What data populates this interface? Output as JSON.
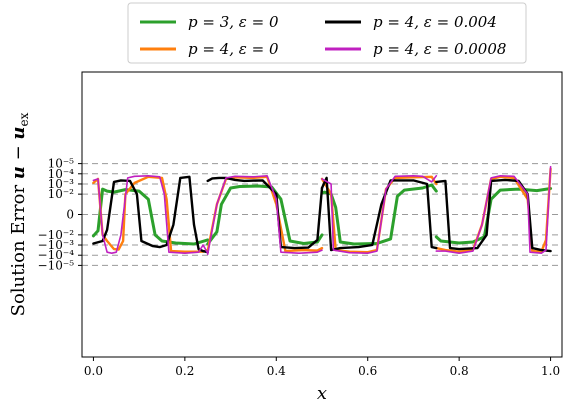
{
  "chart_data": {
    "type": "line",
    "xlabel": "x",
    "ylabel": "Solution Error u − u_ex",
    "ylabel_parts": {
      "prefix": "Solution Error ",
      "u": "u",
      "minus": " − ",
      "uex": "u",
      "sub": "ex"
    },
    "xlim": [
      -0.025,
      1.025
    ],
    "ylim": [
      -14.0,
      14.0
    ],
    "yscale": "symlog",
    "symlog_linthresh": 1e-05,
    "xticks": [
      0.0,
      0.2,
      0.4,
      0.6,
      0.8,
      1.0
    ],
    "xtick_labels": [
      "0.0",
      "0.2",
      "0.4",
      "0.6",
      "0.8",
      "1.0"
    ],
    "yticks": [
      -2,
      -3,
      -4,
      -5,
      0,
      5,
      4,
      3,
      2
    ],
    "ytick_labels": {
      "neg_2": "−10⁻²",
      "neg_3": "−10⁻³",
      "neg_4": "−10⁻⁴",
      "neg_5": "−10⁻⁵",
      "zero": "0",
      "pos_5": "10⁻⁵",
      "pos_4": "10⁻⁴",
      "pos_3": "10⁻³",
      "pos_2": "10⁻²"
    },
    "grid": "horizontal-dashed",
    "legend_position": "top-center",
    "series": [
      {
        "name": "p = 3, ε = 0",
        "color": "#2ca02c",
        "segments": [
          [
            [
              0.0,
              -2.1
            ],
            [
              0.01,
              -1.6
            ],
            [
              0.02,
              2.5
            ],
            [
              0.03,
              2.3
            ],
            [
              0.045,
              2.2
            ],
            [
              0.07,
              2.45
            ],
            [
              0.1,
              2.3
            ],
            [
              0.12,
              1.5
            ],
            [
              0.135,
              -2.0
            ],
            [
              0.15,
              -2.6
            ],
            [
              0.18,
              -2.8
            ],
            [
              0.22,
              -2.9
            ],
            [
              0.25,
              -2.5
            ]
          ],
          [
            [
              0.25,
              -2.9
            ],
            [
              0.27,
              -1.7
            ],
            [
              0.28,
              1.0
            ],
            [
              0.3,
              2.6
            ],
            [
              0.32,
              2.75
            ],
            [
              0.36,
              2.8
            ],
            [
              0.39,
              2.7
            ],
            [
              0.41,
              1.5
            ],
            [
              0.43,
              -2.6
            ],
            [
              0.46,
              -2.85
            ],
            [
              0.49,
              -2.7
            ],
            [
              0.5,
              -2.0
            ]
          ],
          [
            [
              0.5,
              2.1
            ],
            [
              0.505,
              2.2
            ],
            [
              0.52,
              2.0
            ],
            [
              0.53,
              0.7
            ],
            [
              0.54,
              -2.7
            ],
            [
              0.57,
              -2.9
            ],
            [
              0.62,
              -2.85
            ],
            [
              0.65,
              -2.4
            ],
            [
              0.665,
              1.8
            ],
            [
              0.68,
              2.4
            ],
            [
              0.72,
              2.6
            ],
            [
              0.74,
              2.9
            ],
            [
              0.75,
              2.3
            ]
          ],
          [
            [
              0.75,
              -2.2
            ],
            [
              0.76,
              -2.6
            ],
            [
              0.8,
              -2.8
            ],
            [
              0.83,
              -2.7
            ],
            [
              0.855,
              -2.2
            ],
            [
              0.87,
              1.5
            ],
            [
              0.89,
              2.4
            ],
            [
              0.93,
              2.5
            ],
            [
              0.97,
              2.35
            ],
            [
              1.0,
              2.55
            ]
          ]
        ]
      },
      {
        "name": "p = 4, ε = 0",
        "color": "#ff7f0e",
        "segments": [
          [
            [
              0.0,
              3.1
            ],
            [
              0.01,
              3.5
            ],
            [
              0.02,
              -2.0
            ],
            [
              0.03,
              -2.6
            ],
            [
              0.045,
              -3.4
            ],
            [
              0.055,
              -3.45
            ],
            [
              0.065,
              -2.6
            ],
            [
              0.07,
              2.0
            ],
            [
              0.09,
              3.1
            ],
            [
              0.12,
              3.7
            ],
            [
              0.15,
              3.6
            ],
            [
              0.16,
              1.5
            ],
            [
              0.17,
              -3.6
            ],
            [
              0.2,
              -3.65
            ],
            [
              0.24,
              -3.65
            ],
            [
              0.25,
              -3.5
            ]
          ],
          [
            [
              0.25,
              -3.6
            ],
            [
              0.27,
              1.0
            ],
            [
              0.29,
              3.5
            ],
            [
              0.31,
              3.65
            ],
            [
              0.35,
              3.6
            ],
            [
              0.38,
              3.7
            ],
            [
              0.4,
              1.0
            ],
            [
              0.42,
              -3.6
            ],
            [
              0.46,
              -3.5
            ],
            [
              0.49,
              -3.55
            ],
            [
              0.5,
              -3.3
            ]
          ],
          [
            [
              0.5,
              3.5
            ],
            [
              0.52,
              2.0
            ],
            [
              0.53,
              -3.5
            ],
            [
              0.56,
              -3.65
            ],
            [
              0.6,
              -3.7
            ],
            [
              0.62,
              -3.5
            ],
            [
              0.64,
              2.5
            ],
            [
              0.66,
              3.6
            ],
            [
              0.7,
              3.65
            ],
            [
              0.74,
              3.7
            ],
            [
              0.75,
              3.0
            ]
          ],
          [
            [
              0.75,
              -3.3
            ],
            [
              0.77,
              -3.5
            ],
            [
              0.8,
              -3.65
            ],
            [
              0.83,
              -3.5
            ],
            [
              0.85,
              -1.0
            ],
            [
              0.87,
              3.5
            ],
            [
              0.89,
              3.7
            ],
            [
              0.92,
              3.6
            ],
            [
              0.95,
              1.5
            ],
            [
              0.96,
              -3.6
            ],
            [
              0.98,
              -3.65
            ],
            [
              0.99,
              -2.5
            ],
            [
              1.0,
              4.5
            ]
          ]
        ]
      },
      {
        "name": "p = 4, ε = 0.004",
        "color": "#000000",
        "segments": [
          [
            [
              0.0,
              -2.85
            ],
            [
              0.02,
              -2.6
            ],
            [
              0.03,
              -1.5
            ],
            [
              0.045,
              3.2
            ],
            [
              0.06,
              3.35
            ],
            [
              0.08,
              3.3
            ],
            [
              0.095,
              2.0
            ],
            [
              0.105,
              -2.6
            ],
            [
              0.13,
              -3.1
            ],
            [
              0.145,
              -3.2
            ],
            [
              0.16,
              -3.0
            ],
            [
              0.175,
              -1.0
            ],
            [
              0.19,
              3.6
            ],
            [
              0.21,
              3.7
            ],
            [
              0.22,
              -1.0
            ],
            [
              0.23,
              -3.4
            ],
            [
              0.24,
              -3.6
            ],
            [
              0.25,
              -3.7
            ]
          ],
          [
            [
              0.25,
              3.3
            ],
            [
              0.26,
              3.55
            ],
            [
              0.275,
              3.6
            ],
            [
              0.29,
              3.6
            ],
            [
              0.31,
              3.4
            ],
            [
              0.33,
              3.3
            ],
            [
              0.37,
              3.35
            ],
            [
              0.4,
              2.0
            ],
            [
              0.41,
              -3.2
            ],
            [
              0.44,
              -3.3
            ],
            [
              0.47,
              -3.25
            ],
            [
              0.49,
              -2.5
            ],
            [
              0.5,
              2.6
            ]
          ],
          [
            [
              0.5,
              2.6
            ],
            [
              0.51,
              3.6
            ],
            [
              0.52,
              -3.5
            ],
            [
              0.54,
              -3.3
            ],
            [
              0.58,
              -3.2
            ],
            [
              0.61,
              -3.0
            ],
            [
              0.63,
              1.0
            ],
            [
              0.65,
              3.35
            ],
            [
              0.7,
              3.35
            ],
            [
              0.73,
              3.0
            ],
            [
              0.74,
              -3.2
            ],
            [
              0.75,
              -3.3
            ]
          ],
          [
            [
              0.75,
              3.2
            ],
            [
              0.77,
              3.3
            ],
            [
              0.78,
              -3.3
            ],
            [
              0.8,
              -3.4
            ],
            [
              0.84,
              -3.3
            ],
            [
              0.86,
              -2.0
            ],
            [
              0.87,
              3.3
            ],
            [
              0.9,
              3.4
            ],
            [
              0.93,
              3.3
            ],
            [
              0.95,
              2.0
            ],
            [
              0.96,
              -3.3
            ],
            [
              0.98,
              -3.5
            ],
            [
              1.0,
              -3.6
            ]
          ]
        ]
      },
      {
        "name": "p = 4, ε = 0.0008",
        "color": "#c020c0",
        "segments": [
          [
            [
              0.0,
              3.35
            ],
            [
              0.01,
              3.5
            ],
            [
              0.02,
              -2.0
            ],
            [
              0.03,
              -3.7
            ],
            [
              0.04,
              -3.8
            ],
            [
              0.05,
              -3.7
            ],
            [
              0.06,
              -2.0
            ],
            [
              0.075,
              3.6
            ],
            [
              0.09,
              3.75
            ],
            [
              0.12,
              3.8
            ],
            [
              0.145,
              3.7
            ],
            [
              0.155,
              2.0
            ],
            [
              0.165,
              -3.7
            ],
            [
              0.2,
              -3.8
            ],
            [
              0.23,
              -3.7
            ],
            [
              0.24,
              -3.0
            ],
            [
              0.25,
              -3.8
            ]
          ],
          [
            [
              0.25,
              -3.9
            ],
            [
              0.27,
              1.0
            ],
            [
              0.29,
              3.6
            ],
            [
              0.31,
              3.75
            ],
            [
              0.35,
              3.7
            ],
            [
              0.38,
              3.8
            ],
            [
              0.4,
              1.5
            ],
            [
              0.41,
              -3.7
            ],
            [
              0.45,
              -3.8
            ],
            [
              0.49,
              -3.7
            ],
            [
              0.5,
              -3.5
            ]
          ],
          [
            [
              0.5,
              3.5
            ],
            [
              0.52,
              3.0
            ],
            [
              0.525,
              -3.5
            ],
            [
              0.56,
              -3.75
            ],
            [
              0.6,
              -3.8
            ],
            [
              0.62,
              -3.6
            ],
            [
              0.64,
              2.5
            ],
            [
              0.66,
              3.75
            ],
            [
              0.7,
              3.8
            ],
            [
              0.72,
              3.75
            ],
            [
              0.74,
              3.2
            ],
            [
              0.75,
              3.8
            ]
          ],
          [
            [
              0.75,
              -3.6
            ],
            [
              0.77,
              -3.6
            ],
            [
              0.8,
              -3.8
            ],
            [
              0.83,
              -3.6
            ],
            [
              0.85,
              -1.0
            ],
            [
              0.87,
              3.6
            ],
            [
              0.89,
              3.8
            ],
            [
              0.92,
              3.75
            ],
            [
              0.95,
              2.0
            ],
            [
              0.955,
              -3.7
            ],
            [
              0.98,
              -3.8
            ],
            [
              0.99,
              -3.5
            ],
            [
              1.0,
              4.7
            ]
          ]
        ]
      }
    ]
  }
}
